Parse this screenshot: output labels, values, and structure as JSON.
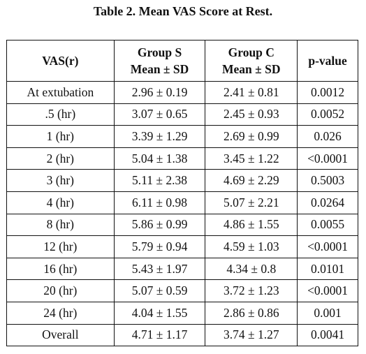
{
  "caption": "Table 2. Mean VAS Score at Rest.",
  "table": {
    "headers": {
      "vas": "VAS(r)",
      "group_s": {
        "line1": "Group S",
        "line2": "Mean ± SD"
      },
      "group_c": {
        "line1": "Group C",
        "line2": "Mean ± SD"
      },
      "pvalue": "p-value"
    },
    "rows": [
      {
        "vas": "At extubation",
        "s": "2.96 ± 0.19",
        "c": "2.41 ± 0.81",
        "p": "0.0012"
      },
      {
        "vas": ".5 (hr)",
        "s": "3.07 ± 0.65",
        "c": "2.45 ± 0.93",
        "p": "0.0052"
      },
      {
        "vas": "1 (hr)",
        "s": "3.39 ± 1.29",
        "c": "2.69 ± 0.99",
        "p": "0.026"
      },
      {
        "vas": "2 (hr)",
        "s": "5.04 ± 1.38",
        "c": "3.45 ± 1.22",
        "p": "<0.0001"
      },
      {
        "vas": "3 (hr)",
        "s": "5.11 ± 2.38",
        "c": "4.69 ± 2.29",
        "p": "0.5003"
      },
      {
        "vas": "4 (hr)",
        "s": "6.11 ± 0.98",
        "c": "5.07 ± 2.21",
        "p": "0.0264"
      },
      {
        "vas": "8 (hr)",
        "s": "5.86 ± 0.99",
        "c": "4.86 ± 1.55",
        "p": "0.0055"
      },
      {
        "vas": "12 (hr)",
        "s": "5.79 ± 0.94",
        "c": "4.59 ± 1.03",
        "p": "<0.0001"
      },
      {
        "vas": "16 (hr)",
        "s": "5.43 ± 1.97",
        "c": "4.34 ± 0.8",
        "p": "0.0101"
      },
      {
        "vas": "20 (hr)",
        "s": "5.07 ± 0.59",
        "c": "3.72 ± 1.23",
        "p": "<0.0001"
      },
      {
        "vas": "24 (hr)",
        "s": "4.04 ± 1.55",
        "c": "2.86 ± 0.86",
        "p": "0.001"
      },
      {
        "vas": "Overall",
        "s": "4.71 ± 1.17",
        "c": "3.74 ± 1.27",
        "p": "0.0041"
      }
    ]
  }
}
